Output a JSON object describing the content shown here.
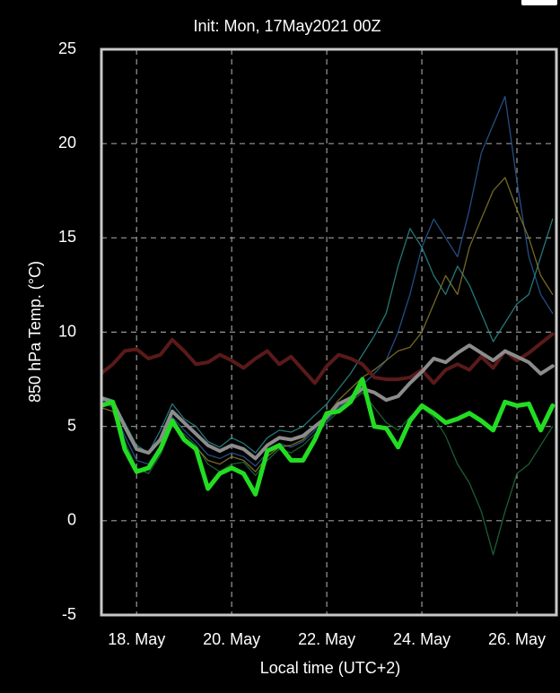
{
  "chart_data": {
    "type": "line",
    "title": "Init: Mon, 17May2021 00Z",
    "x_label": "Local time (UTC+2)",
    "y_label": "850 hPa Temp. (°C)",
    "x": [
      17.25,
      17.5,
      17.75,
      18,
      18.25,
      18.5,
      18.75,
      19,
      19.25,
      19.5,
      19.75,
      20,
      20.25,
      20.5,
      20.75,
      21,
      21.25,
      21.5,
      21.75,
      22,
      22.25,
      22.5,
      22.75,
      23,
      23.25,
      23.5,
      23.75,
      24,
      24.25,
      24.5,
      24.75,
      25,
      25.25,
      25.5,
      25.75,
      26,
      26.25,
      26.5,
      26.75
    ],
    "xlim": [
      17.26,
      26.83
    ],
    "xticks": [
      {
        "value": 18,
        "label": "18. May"
      },
      {
        "value": 20,
        "label": "20. May"
      },
      {
        "value": 22,
        "label": "22. May"
      },
      {
        "value": 24,
        "label": "24. May"
      },
      {
        "value": 26,
        "label": "26. May"
      }
    ],
    "ylim": [
      -5,
      25
    ],
    "yticks": [
      -5,
      0,
      5,
      10,
      15,
      20,
      25
    ],
    "grid": true,
    "series": [
      {
        "color": "#2a5a9a",
        "values": [
          6.4,
          6.0,
          4.5,
          3.2,
          3.0,
          4.0,
          5.5,
          4.8,
          4.2,
          3.5,
          3.3,
          3.6,
          3.4,
          2.9,
          3.6,
          4.1,
          3.9,
          4.2,
          4.8,
          5.3,
          6.0,
          6.5,
          7.2,
          7.8,
          8.5,
          10.0,
          12.0,
          14.5,
          16.0,
          15.0,
          14.0,
          16.5,
          19.5,
          21.0,
          22.5,
          18.0,
          14.0,
          12.0,
          11.0
        ]
      },
      {
        "color": "#1f6e3a",
        "values": [
          6.2,
          6.1,
          4.2,
          2.8,
          2.5,
          3.5,
          5.0,
          4.6,
          4.0,
          3.0,
          2.6,
          3.0,
          3.1,
          2.4,
          3.2,
          3.8,
          3.6,
          4.0,
          4.6,
          5.2,
          5.8,
          6.3,
          6.8,
          6.0,
          5.2,
          4.8,
          5.5,
          6.0,
          5.5,
          4.5,
          3.0,
          2.0,
          0.5,
          -1.8,
          0.5,
          2.5,
          3.0,
          4.0,
          5.0
        ]
      },
      {
        "color": "#2a8c8c",
        "values": [
          6.6,
          6.4,
          5.2,
          4.0,
          3.6,
          4.8,
          6.2,
          5.4,
          5.0,
          4.2,
          3.9,
          4.4,
          4.1,
          3.6,
          4.4,
          4.8,
          4.7,
          5.0,
          5.6,
          6.2,
          7.0,
          7.8,
          8.8,
          9.8,
          11.0,
          13.5,
          15.5,
          14.5,
          13.0,
          12.0,
          13.5,
          12.5,
          11.0,
          9.5,
          10.5,
          11.5,
          12.0,
          14.0,
          16.0
        ]
      },
      {
        "color": "#8a7a2a",
        "values": [
          6.0,
          5.8,
          4.0,
          2.6,
          2.8,
          3.9,
          5.2,
          4.4,
          3.9,
          3.2,
          3.0,
          3.4,
          3.2,
          2.6,
          3.4,
          3.9,
          4.0,
          4.3,
          5.0,
          5.6,
          6.4,
          7.0,
          7.6,
          8.0,
          8.5,
          9.0,
          9.2,
          10.0,
          11.5,
          13.0,
          12.0,
          14.5,
          16.0,
          17.5,
          18.2,
          16.5,
          15.0,
          13.0,
          12.0
        ]
      },
      {
        "color": "#5a1a1a",
        "values": [
          7.8,
          8.3,
          9.0,
          9.1,
          8.6,
          8.8,
          9.6,
          9.0,
          8.3,
          8.4,
          8.8,
          8.5,
          8.1,
          8.6,
          9.0,
          8.3,
          8.7,
          8.0,
          7.3,
          8.2,
          8.8,
          8.6,
          8.3,
          7.6,
          7.5,
          7.5,
          7.6,
          8.0,
          7.3,
          8.0,
          8.3,
          8.0,
          8.7,
          8.1,
          9.0,
          8.5,
          8.9,
          9.4,
          9.9
        ]
      },
      {
        "color": "#8c8c8c",
        "values": [
          6.5,
          6.3,
          5.0,
          3.8,
          3.6,
          4.3,
          5.8,
          5.2,
          4.6,
          4.0,
          3.7,
          4.0,
          3.8,
          3.3,
          4.0,
          4.4,
          4.3,
          4.5,
          5.0,
          5.5,
          6.2,
          6.5,
          7.0,
          6.8,
          6.4,
          6.6,
          7.3,
          7.9,
          8.6,
          8.4,
          8.9,
          9.3,
          8.9,
          8.5,
          9.0,
          8.7,
          8.4,
          7.8,
          8.2
        ]
      },
      {
        "color": "#22dd22",
        "values": [
          6.1,
          6.3,
          3.8,
          2.6,
          2.8,
          3.8,
          5.3,
          4.3,
          3.8,
          1.7,
          2.5,
          2.8,
          2.5,
          1.4,
          3.7,
          4.0,
          3.2,
          3.2,
          4.3,
          5.7,
          5.8,
          6.3,
          7.5,
          5.0,
          4.9,
          3.9,
          5.3,
          6.1,
          5.7,
          5.2,
          5.4,
          5.7,
          5.3,
          4.8,
          6.3,
          6.1,
          6.2,
          4.8,
          6.1
        ]
      }
    ]
  }
}
